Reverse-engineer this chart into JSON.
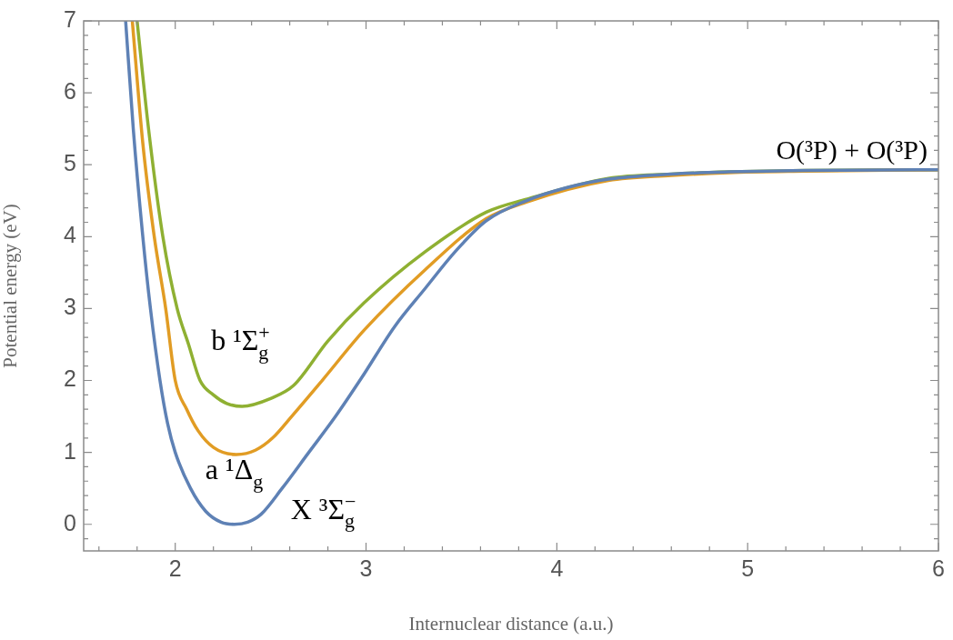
{
  "chart_data": {
    "type": "line",
    "xlabel": "Internuclear distance (a.u.)",
    "ylabel": "Potential energy (eV)",
    "xlim": [
      1.52,
      6
    ],
    "ylim": [
      -0.37,
      7
    ],
    "xticks": [
      {
        "value": 1.6,
        "label": null
      },
      {
        "value": 1.8,
        "label": null
      },
      2,
      {
        "value": 2.2,
        "label": null
      },
      {
        "value": 2.4,
        "label": null
      },
      {
        "value": 2.6,
        "label": null
      },
      {
        "value": 2.8,
        "label": null
      },
      3,
      {
        "value": 3.2,
        "label": null
      },
      {
        "value": 3.4,
        "label": null
      },
      {
        "value": 3.6,
        "label": null
      },
      {
        "value": 3.8,
        "label": null
      },
      4,
      {
        "value": 4.2,
        "label": null
      },
      {
        "value": 4.4,
        "label": null
      },
      {
        "value": 4.6,
        "label": null
      },
      {
        "value": 4.8,
        "label": null
      },
      5,
      {
        "value": 5.2,
        "label": null
      },
      {
        "value": 5.4,
        "label": null
      },
      {
        "value": 5.6,
        "label": null
      },
      {
        "value": 5.8,
        "label": null
      },
      6
    ],
    "yticks": [
      {
        "value": -0.2,
        "label": null
      },
      0,
      {
        "value": 0.2,
        "label": null
      },
      {
        "value": 0.4,
        "label": null
      },
      {
        "value": 0.6,
        "label": null
      },
      {
        "value": 0.8,
        "label": null
      },
      1,
      {
        "value": 1.2,
        "label": null
      },
      {
        "value": 1.4,
        "label": null
      },
      {
        "value": 1.6,
        "label": null
      },
      {
        "value": 1.8,
        "label": null
      },
      2,
      {
        "value": 2.2,
        "label": null
      },
      {
        "value": 2.4,
        "label": null
      },
      {
        "value": 2.6,
        "label": null
      },
      {
        "value": 2.8,
        "label": null
      },
      3,
      {
        "value": 3.2,
        "label": null
      },
      {
        "value": 3.4,
        "label": null
      },
      {
        "value": 3.6,
        "label": null
      },
      {
        "value": 3.8,
        "label": null
      },
      4,
      {
        "value": 4.2,
        "label": null
      },
      {
        "value": 4.4,
        "label": null
      },
      {
        "value": 4.6,
        "label": null
      },
      {
        "value": 4.8,
        "label": null
      },
      5,
      {
        "value": 5.2,
        "label": null
      },
      {
        "value": 5.4,
        "label": null
      },
      {
        "value": 5.6,
        "label": null
      },
      {
        "value": 5.8,
        "label": null
      },
      6,
      {
        "value": 6.2,
        "label": null
      },
      {
        "value": 6.4,
        "label": null
      },
      {
        "value": 6.6,
        "label": null
      },
      {
        "value": 6.8,
        "label": null
      },
      7
    ],
    "grid": false,
    "legend": false,
    "marker": "none",
    "line_style": "solid",
    "series": [
      {
        "name": "X ³Σ$_{g}$$^{−}$",
        "color": "#5e81b5",
        "x": [
          1.74,
          1.78,
          1.83,
          1.87,
          1.92,
          1.96,
          2.0,
          2.08,
          2.16,
          2.24,
          2.31,
          2.38,
          2.45,
          2.56,
          2.7,
          2.84,
          2.98,
          3.15,
          3.31,
          3.47,
          3.63,
          3.84,
          4.05,
          4.27,
          4.6,
          4.9,
          5.3,
          6.0
        ],
        "values": [
          7,
          5.5,
          4,
          3,
          2,
          1.4,
          1.0,
          0.5,
          0.18,
          0.03,
          0,
          0.03,
          0.14,
          0.5,
          1.0,
          1.5,
          2.05,
          2.75,
          3.28,
          3.8,
          4.22,
          4.5,
          4.68,
          4.8,
          4.87,
          4.9,
          4.92,
          4.93
        ]
      },
      {
        "name": "a ¹Δ$_{g}$",
        "color": "#e19c24",
        "x": [
          1.775,
          1.83,
          1.89,
          1.95,
          2.0,
          2.06,
          2.12,
          2.2,
          2.32,
          2.42,
          2.51,
          2.61,
          2.77,
          2.99,
          3.31,
          3.63,
          3.84,
          4.27,
          4.6,
          4.9,
          5.3,
          6.0
        ],
        "values": [
          7,
          5.3,
          4,
          3,
          2.0,
          1.6,
          1.3,
          1.07,
          0.97,
          1.03,
          1.2,
          1.5,
          2.0,
          2.7,
          3.54,
          4.25,
          4.48,
          4.78,
          4.85,
          4.89,
          4.91,
          4.93
        ]
      },
      {
        "name": "b ¹Σ$_{g}$$^{+}$",
        "color": "#8fb032",
        "x": [
          1.8,
          1.86,
          1.935,
          2.01,
          2.07,
          2.13,
          2.2,
          2.27,
          2.35,
          2.5,
          2.62,
          2.8,
          2.99,
          3.31,
          3.63,
          3.84,
          4.27,
          4.6,
          4.9,
          5.3,
          6.0
        ],
        "values": [
          7,
          5.5,
          4,
          3,
          2.5,
          2.0,
          1.8,
          1.68,
          1.64,
          1.75,
          1.93,
          2.55,
          3.08,
          3.79,
          4.34,
          4.52,
          4.81,
          4.87,
          4.9,
          4.92,
          4.93
        ]
      }
    ],
    "annotations": [
      "O(³P) + O(³P)"
    ]
  }
}
